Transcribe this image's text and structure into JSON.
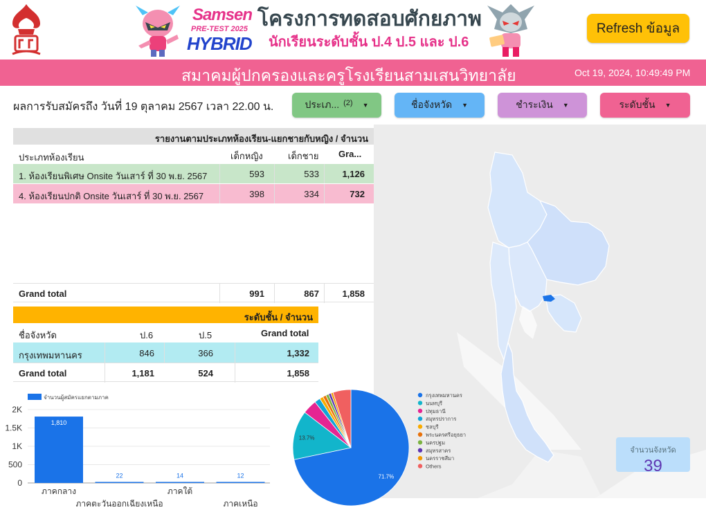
{
  "header": {
    "samsen_word": "Samsen",
    "pretest_word": "PRE-TEST 2025",
    "hybrid_word": "HYBRID",
    "title_main": "โครงการทดสอบศักยภาพ",
    "title_sub": "นักเรียนระดับชั้น ป.4 ป.5 และ ป.6",
    "refresh_label": "Refresh ข้อมูล",
    "association": "สมาคมผู้ปกครองและครูโรงเรียนสามเสนวิทยาลัย",
    "datetime": "Oct 19, 2024, 10:49:49 PM"
  },
  "registration_note": "ผลการรับสมัครถึง วันที่ 19 ตุลาคม 2567 เวลา 22.00 น.",
  "filters": [
    {
      "label": "ประเภ...",
      "count": "(2)"
    },
    {
      "label": "ชื่อจังหวัด"
    },
    {
      "label": "ชำระเงิน"
    },
    {
      "label": "ระดับชั้น"
    }
  ],
  "colors": {
    "pink_bar": "#f06292",
    "refresh": "#ffc107",
    "green_row": "#c8e6c9",
    "pink_row": "#f8bbd0",
    "cyan_row": "#b2ebf2",
    "amber_header": "#ffb300"
  },
  "table_classroom": {
    "title": "รายงานตามประเภทห้องเรียน-แยกชายกับหญิง / จำนวน",
    "columns": [
      "ประเภทห้องเรียน",
      "เด็กหญิง",
      "เด็กชาย",
      "Gra..."
    ],
    "rows": [
      {
        "name": "1. ห้องเรียนพิเศษ Onsite วันเสาร์ ที่ 30 พ.ย. 2567",
        "girls": "593",
        "boys": "533",
        "total": "1,126"
      },
      {
        "name": "4. ห้องเรียนปกติ Onsite วันเสาร์ ที่ 30 พ.ย. 2567",
        "girls": "398",
        "boys": "334",
        "total": "732"
      }
    ],
    "grand_total": {
      "label": "Grand total",
      "girls": "991",
      "boys": "867",
      "total": "1,858"
    }
  },
  "table_level": {
    "title": "ระดับชั้น / จำนวน",
    "columns": [
      "ชื่อจังหวัด",
      "ป.6",
      "ป.5",
      "Grand total"
    ],
    "rows": [
      {
        "name": "กรุงเทพมหานคร",
        "p6": "846",
        "p5": "366",
        "total": "1,332"
      }
    ],
    "grand_total": {
      "label": "Grand total",
      "p6": "1,181",
      "p5": "524",
      "total": "1,858"
    }
  },
  "chart_data": [
    {
      "type": "bar",
      "legend": "จำนวนผู้สมัครแยกตามภาค",
      "categories": [
        "ภาคกลาง",
        "ภาคตะวันออกเฉียงเหนือ",
        "ภาคใต้",
        "ภาคเหนือ"
      ],
      "values": [
        1810,
        22,
        14,
        12
      ],
      "value_labels": [
        "1,810",
        "22",
        "14",
        "12"
      ],
      "y_ticks": [
        "0",
        "500",
        "1K",
        "1.5K",
        "2K"
      ],
      "ylim": [
        0,
        2000
      ],
      "color": "#1a73e8"
    },
    {
      "type": "pie",
      "labels": [
        "กรุงเทพมหานคร",
        "นนทบุรี",
        "ปทุมธานี",
        "สมุทรปราการ",
        "ชลบุรี",
        "พระนครศรีอยุธยา",
        "นครปฐม",
        "สมุทรสาคร",
        "นครราชสีมา",
        "Others"
      ],
      "values": [
        71.7,
        13.7,
        4.0,
        1.6,
        1.0,
        0.9,
        0.8,
        0.7,
        0.6,
        5.0
      ],
      "shown_pct": [
        "71.7%",
        "13.7%"
      ],
      "colors": [
        "#1a73e8",
        "#12b5cb",
        "#e52592",
        "#12a4d6",
        "#f9ab00",
        "#e8710a",
        "#7cb342",
        "#5e35b1",
        "#f29900",
        "#f06060"
      ],
      "legend_position": "right"
    }
  ],
  "kpi": {
    "label": "จำนวนจังหวัด",
    "value": "39"
  }
}
